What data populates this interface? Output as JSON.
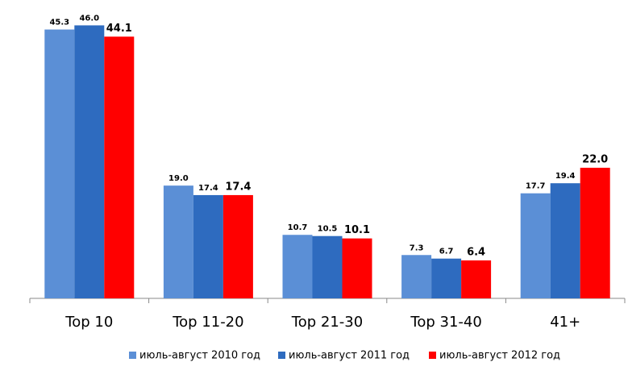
{
  "chart_data": {
    "type": "bar",
    "categories": [
      "Top 10",
      "Top 11-20",
      "Top 21-30",
      "Top 31-40",
      "41+"
    ],
    "series": [
      {
        "name": "июль-август 2010 год",
        "color": "#5b8fd6",
        "values": [
          45.3,
          19.0,
          10.7,
          7.3,
          17.7
        ],
        "value_labels": [
          "45.3",
          "19.0",
          "10.7",
          "7.3",
          "17.7"
        ]
      },
      {
        "name": "июль-август 2011 год",
        "color": "#2e6bbf",
        "values": [
          46.0,
          17.4,
          10.5,
          6.7,
          19.4
        ],
        "value_labels": [
          "46.0",
          "17.4",
          "10.5",
          "6.7",
          "19.4"
        ]
      },
      {
        "name": "июль-август 2012 год",
        "color": "#ff0000",
        "values": [
          44.1,
          17.4,
          10.1,
          6.4,
          22.0
        ],
        "value_labels": [
          "44.1",
          "17.4",
          "10.1",
          "6.4",
          "22.0"
        ]
      }
    ],
    "ylim": [
      0,
      50
    ]
  }
}
